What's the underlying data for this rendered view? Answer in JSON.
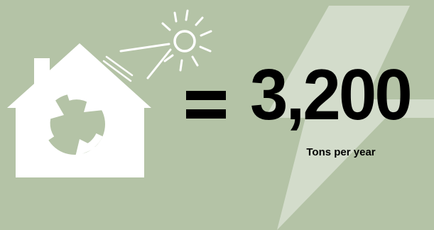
{
  "infographic": {
    "value": "3,200",
    "unit_label": "Tons per year",
    "equals_symbol": "="
  },
  "icons": {
    "house": "house-icon",
    "recycle": "recycle-arrows-icon",
    "sun": "sun-icon",
    "lightning": "lightning-bolt-icon",
    "solar_panel": "solar-panel-icon"
  },
  "colors": {
    "background": "#b4c3a6",
    "lightning": "#d3dccb",
    "icons": "#ffffff",
    "text": "#000000"
  }
}
